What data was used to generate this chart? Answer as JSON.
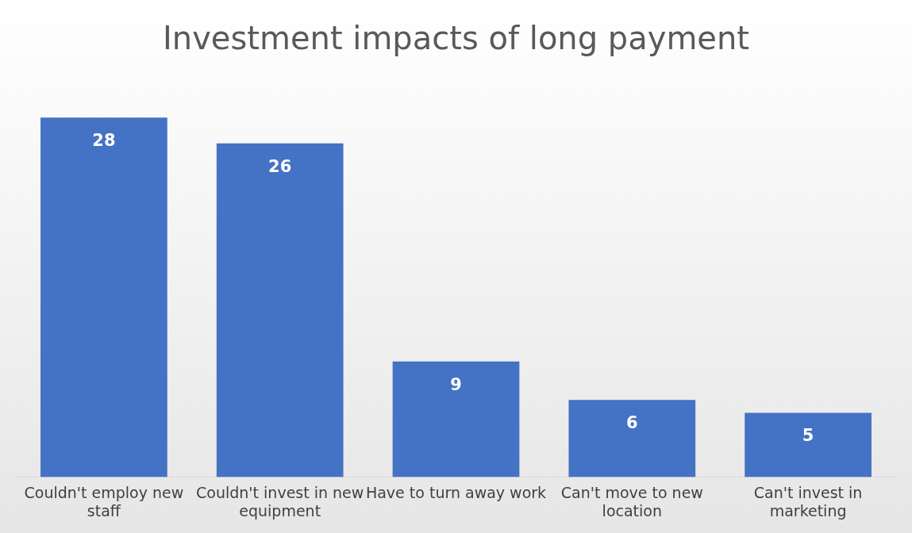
{
  "chart_data": {
    "type": "bar",
    "title": "Investment impacts of long payment",
    "categories": [
      "Couldn't employ new staff",
      "Couldn't invest in new equipment",
      "Have to turn away work",
      "Can't move to new location",
      "Can't invest in marketing"
    ],
    "values": [
      28,
      26,
      9,
      6,
      5
    ],
    "color": "#4472c4",
    "data_labels": true,
    "grid": false,
    "legend": false
  }
}
